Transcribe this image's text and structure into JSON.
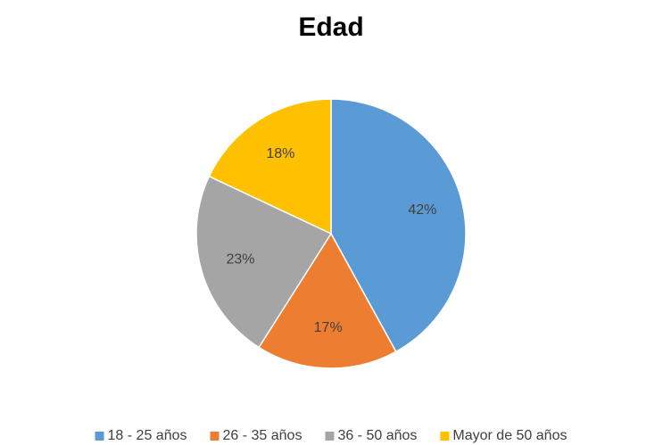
{
  "chart_data": {
    "type": "pie",
    "title": "Edad",
    "categories": [
      "18 - 25 años",
      "26 - 35 años",
      "36 - 50 años",
      "Mayor de 50 años"
    ],
    "values": [
      42,
      17,
      23,
      18
    ],
    "value_labels": [
      "42%",
      "17%",
      "23%",
      "18%"
    ],
    "colors": [
      "#5b9bd5",
      "#ed7d31",
      "#a5a5a5",
      "#ffc000"
    ],
    "legend": "bottom"
  }
}
